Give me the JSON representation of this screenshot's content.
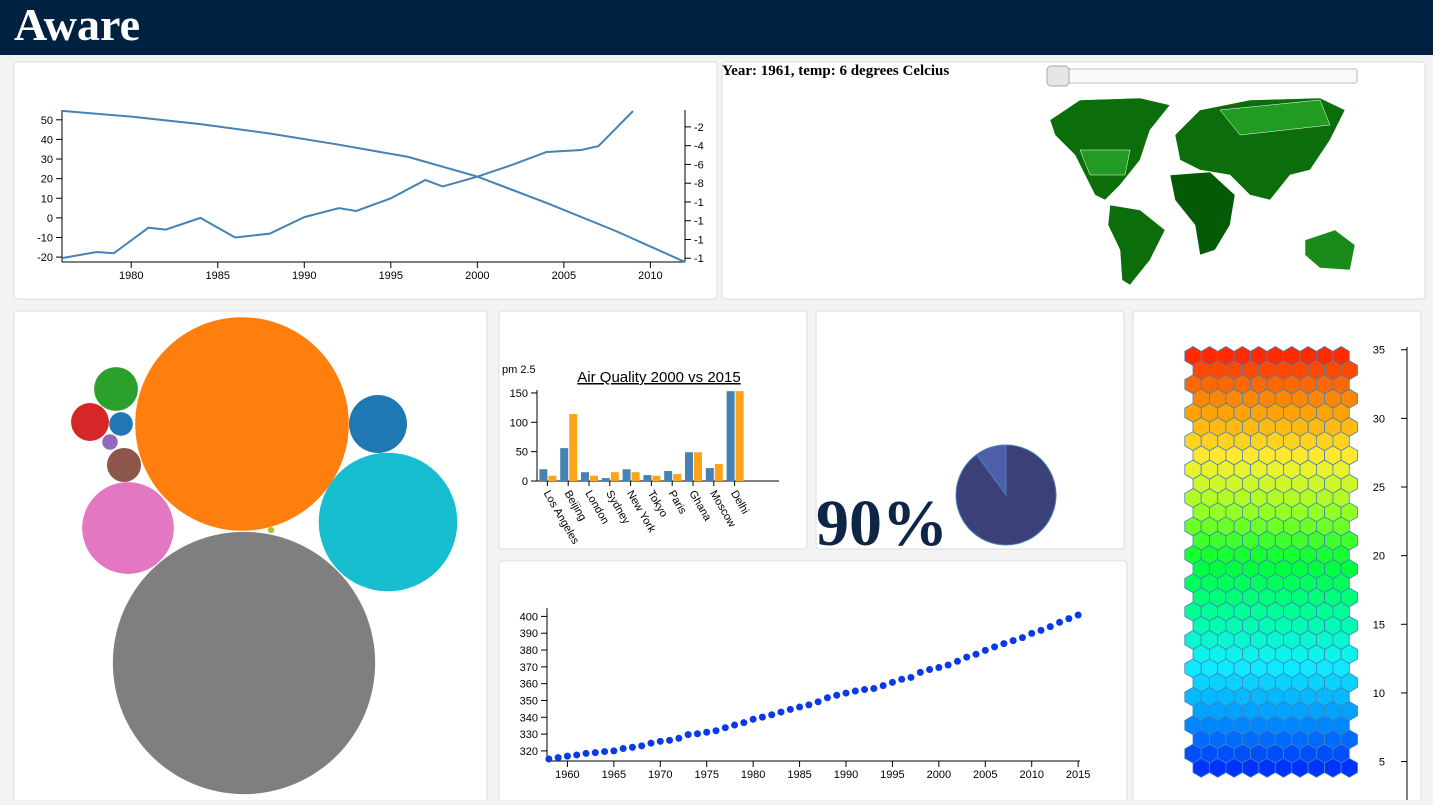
{
  "header": {
    "title": "Aware"
  },
  "map": {
    "caption": "Year: 1961, temp: 6 degrees Celcius"
  },
  "chart_data": [
    {
      "type": "line",
      "xlim": [
        1976,
        2012
      ],
      "xticks": [
        1980,
        1985,
        1990,
        1995,
        2000,
        2005,
        2010
      ],
      "ylim": [
        -22.5,
        55
      ],
      "yticks": [
        -20,
        -10,
        0,
        10,
        20,
        30,
        40,
        50
      ],
      "y2lim": [
        -16.4,
        -0.2
      ],
      "y2ticks": [
        -2,
        -4,
        -6,
        -8,
        {
          "value": -10,
          "label": "-1"
        },
        {
          "value": -12,
          "label": "-1"
        },
        {
          "value": -14,
          "label": "-1"
        },
        {
          "value": -16,
          "label": "-1"
        }
      ],
      "series": [
        {
          "color": "#4682b4",
          "x": [
            1976,
            1978,
            1979,
            1981,
            1982,
            1984,
            1986,
            1988,
            1990,
            1992,
            1993,
            1995,
            1997,
            1998,
            2000,
            2002,
            2004,
            2006,
            2007,
            2009
          ],
          "values": [
            -20.5,
            -17.4,
            -18,
            -5,
            -6,
            0,
            -10,
            -8,
            0.4,
            5,
            3.5,
            10,
            19.3,
            16,
            21,
            27,
            33.6,
            34.6,
            36.6,
            54.5
          ]
        },
        {
          "color": "#4682b4",
          "axis": "y2",
          "x": [
            1976,
            1980,
            1984,
            1988,
            1992,
            1996,
            2000,
            2004,
            2008,
            2012
          ],
          "values": [
            -0.3,
            -0.9,
            -1.7,
            -2.7,
            -3.9,
            -5.2,
            -7.3,
            -10.1,
            -13.1,
            -16.4
          ]
        }
      ]
    },
    {
      "type": "bubble",
      "values": [
        114,
        172,
        48,
        21,
        4.8,
        3.6,
        1.4,
        0.6,
        2.9,
        8.4,
        0.1
      ],
      "colors": [
        "#ff7f0e",
        "#7f7f7f",
        "#17becf",
        "#e377c2",
        "#2ca02c",
        "#d62728",
        "#1f77b4",
        "#9467bd",
        "#8c564b",
        "#1f77b4",
        "#bcbd22"
      ]
    },
    {
      "type": "bar",
      "title": "Air Quality 2000 vs 2015",
      "ylabel": "pm 2.5",
      "categories": [
        "Los Angeles",
        "Beijing",
        "London",
        "Sydney",
        "New York",
        "Tokyo",
        "Paris",
        "Ghana",
        "Moscow",
        "Delhi"
      ],
      "series": [
        {
          "color": "#4682b4",
          "values": [
            20,
            56,
            15,
            5,
            20,
            10,
            17,
            49,
            22,
            153
          ]
        },
        {
          "color": "#ffa31a",
          "values": [
            9,
            114,
            9,
            15,
            15,
            9,
            12,
            49,
            29,
            153
          ]
        }
      ],
      "ylim": [
        0,
        155
      ],
      "yticks": [
        0,
        50,
        100,
        150
      ]
    },
    {
      "type": "pie",
      "annotation": "90%",
      "values": [
        90,
        10
      ],
      "colors": [
        "#3b4178",
        "#4e5ea8"
      ]
    },
    {
      "type": "scatter",
      "color": "#0a3ae8",
      "xlim": [
        1957.8,
        2015.2
      ],
      "xticks": [
        1960,
        1965,
        1970,
        1975,
        1980,
        1985,
        1990,
        1995,
        2000,
        2005,
        2010,
        2015
      ],
      "ylim": [
        314,
        405
      ],
      "yticks": [
        320,
        330,
        340,
        350,
        360,
        370,
        380,
        390,
        400
      ],
      "x": [
        1958,
        1959,
        1960,
        1961,
        1962,
        1963,
        1964,
        1965,
        1966,
        1967,
        1968,
        1969,
        1970,
        1971,
        1972,
        1973,
        1974,
        1975,
        1976,
        1977,
        1978,
        1979,
        1980,
        1981,
        1982,
        1983,
        1984,
        1985,
        1986,
        1987,
        1988,
        1989,
        1990,
        1991,
        1992,
        1993,
        1994,
        1995,
        1996,
        1997,
        1998,
        1999,
        2000,
        2001,
        2002,
        2003,
        2004,
        2005,
        2006,
        2007,
        2008,
        2009,
        2010,
        2011,
        2012,
        2013,
        2014,
        2015
      ],
      "values": [
        315.2,
        316.0,
        316.9,
        317.6,
        318.5,
        319.0,
        319.6,
        320.0,
        321.4,
        322.2,
        323.0,
        324.6,
        325.7,
        326.3,
        327.5,
        329.7,
        330.2,
        331.1,
        332.0,
        333.8,
        335.4,
        336.8,
        338.8,
        340.1,
        341.5,
        343.1,
        344.7,
        346.1,
        347.4,
        349.2,
        351.6,
        353.1,
        354.4,
        355.6,
        356.5,
        357.1,
        358.8,
        360.8,
        362.6,
        363.7,
        366.7,
        368.4,
        369.6,
        371.1,
        373.3,
        375.8,
        377.5,
        379.8,
        381.9,
        383.8,
        385.6,
        387.4,
        389.9,
        391.7,
        393.9,
        396.5,
        398.7,
        400.8
      ]
    },
    {
      "type": "hexbin",
      "ylim": [
        2.2,
        35.2
      ],
      "yticks": [
        5,
        10,
        15,
        20,
        25,
        30,
        35
      ],
      "color_scale": [
        "#ff2a00",
        "#ff9900",
        "#ffee33",
        "#99ff22",
        "#00ff33",
        "#00ff99",
        "#11eeff",
        "#0099ff",
        "#0033ff"
      ]
    }
  ]
}
